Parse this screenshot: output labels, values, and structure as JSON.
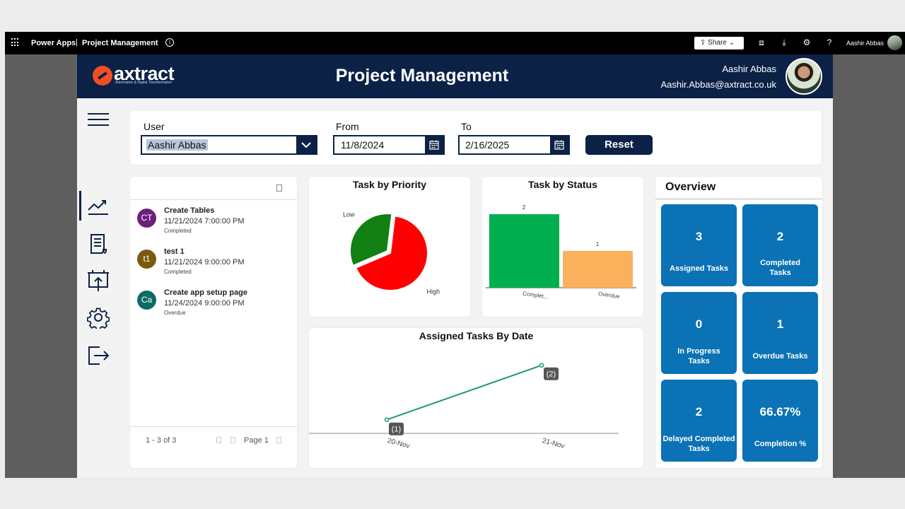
{
  "platform": {
    "brand": "Power Apps",
    "separator": "|",
    "app_name": "Project Management",
    "share_label": "Share",
    "user_name": "Aashir Abbas",
    "icons": [
      "waffle-icon",
      "info-icon",
      "share-icon",
      "fit-screen-icon",
      "download-icon",
      "settings-icon",
      "help-icon"
    ]
  },
  "header": {
    "logo_text": "axtract",
    "logo_tagline": "Automation & Digital Transformation",
    "title": "Project Management",
    "user_name": "Aashir Abbas",
    "user_email": "Aashir.Abbas@axtract.co.uk"
  },
  "nav": {
    "items": [
      "menu-icon",
      "analytics-icon",
      "document-icon",
      "upload-board-icon",
      "settings-icon",
      "logout-icon"
    ],
    "active": "analytics-icon"
  },
  "filters": {
    "user_label": "User",
    "user_value": "Aashir Abbas",
    "from_label": "From",
    "from_value": "11/8/2024",
    "to_label": "To",
    "to_value": "2/16/2025",
    "reset_label": "Reset"
  },
  "tasks": {
    "items": [
      {
        "initials": "CT",
        "title": "Create Tables",
        "datetime": "11/21/2024 7:00:00 PM",
        "status": "Completed",
        "color": "#6b1f7a"
      },
      {
        "initials": "t1",
        "title": "test 1",
        "datetime": "11/21/2024 9:00:00 PM",
        "status": "Completed",
        "color": "#7a5a0c"
      },
      {
        "initials": "Ca",
        "title": "Create app setup page",
        "datetime": "11/24/2024 9:00:00 PM",
        "status": "Overdue",
        "color": "#0d6b63"
      }
    ],
    "range": "1 - 3 of 3",
    "page_label": "Page 1"
  },
  "chart_data": [
    {
      "type": "pie",
      "title": "Task by Priority",
      "categories": [
        "Low",
        "High"
      ],
      "values": [
        1,
        2
      ],
      "colors": [
        "#128012",
        "#ff0000"
      ]
    },
    {
      "type": "bar",
      "title": "Task by Status",
      "categories": [
        "Complet...",
        "Overdue"
      ],
      "values": [
        2,
        1
      ],
      "colors": [
        "#00b050",
        "#fbb15b"
      ]
    },
    {
      "type": "line",
      "title": "Assigned Tasks By Date",
      "categories": [
        "20-Nov",
        "21-Nov"
      ],
      "values": [
        1,
        2
      ],
      "data_labels": [
        "(1)",
        "(2)"
      ],
      "color": "#1a9b72"
    }
  ],
  "overview": {
    "title": "Overview",
    "tiles": [
      {
        "value": "3",
        "label": "Assigned Tasks"
      },
      {
        "value": "2",
        "label": "Completed Tasks"
      },
      {
        "value": "0",
        "label": "In Progress Tasks"
      },
      {
        "value": "1",
        "label": "Overdue Tasks"
      },
      {
        "value": "2",
        "label": "Delayed Completed Tasks"
      },
      {
        "value": "66.67%",
        "label": "Completion %"
      }
    ]
  }
}
